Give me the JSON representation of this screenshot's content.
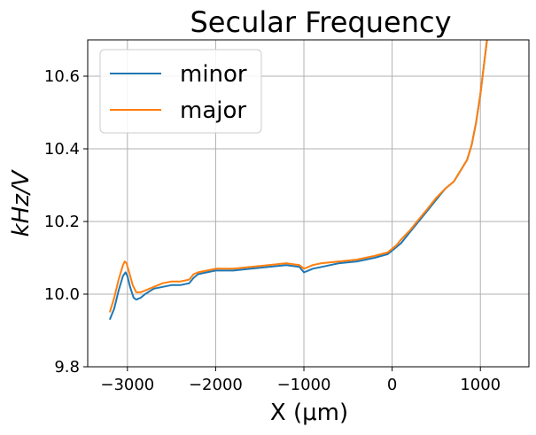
{
  "chart_data": {
    "type": "line",
    "title": "Secular Frequency",
    "xlabel": "X (μm)",
    "ylabel": "kHz/V",
    "xlim": [
      -3450,
      1550
    ],
    "ylim": [
      9.8,
      10.7
    ],
    "xticks": [
      -3000,
      -2000,
      -1000,
      0,
      1000
    ],
    "xtick_labels": [
      "−3000",
      "−2000",
      "−1000",
      "0",
      "1000"
    ],
    "yticks": [
      9.8,
      10.0,
      10.2,
      10.4,
      10.6
    ],
    "ytick_labels": [
      "9.8",
      "10.0",
      "10.2",
      "10.4",
      "10.6"
    ],
    "grid": true,
    "legend": "upper left",
    "series": [
      {
        "name": "minor",
        "color": "#1f77b4",
        "x": [
          -3200,
          -3150,
          -3100,
          -3050,
          -3020,
          -3000,
          -2970,
          -2930,
          -2900,
          -2850,
          -2800,
          -2700,
          -2600,
          -2500,
          -2400,
          -2300,
          -2250,
          -2200,
          -2100,
          -2000,
          -1800,
          -1600,
          -1400,
          -1200,
          -1050,
          -1000,
          -950,
          -900,
          -800,
          -600,
          -400,
          -200,
          -50,
          0,
          50,
          100,
          200,
          300,
          400,
          500,
          600,
          700,
          750,
          800,
          850,
          900,
          950,
          1000,
          1050,
          1080
        ],
        "y": [
          9.93,
          9.96,
          10.01,
          10.05,
          10.06,
          10.05,
          10.02,
          9.99,
          9.985,
          9.99,
          10.0,
          10.015,
          10.02,
          10.025,
          10.025,
          10.03,
          10.045,
          10.055,
          10.06,
          10.065,
          10.065,
          10.07,
          10.075,
          10.08,
          10.075,
          10.06,
          10.065,
          10.07,
          10.075,
          10.085,
          10.09,
          10.1,
          10.11,
          10.12,
          10.13,
          10.14,
          10.17,
          10.2,
          10.23,
          10.26,
          10.29,
          10.31,
          10.33,
          10.35,
          10.37,
          10.41,
          10.47,
          10.55,
          10.65,
          10.71
        ]
      },
      {
        "name": "major",
        "color": "#ff7f0e",
        "x": [
          -3200,
          -3150,
          -3100,
          -3050,
          -3030,
          -3010,
          -2980,
          -2940,
          -2900,
          -2850,
          -2800,
          -2700,
          -2600,
          -2500,
          -2400,
          -2300,
          -2250,
          -2200,
          -2100,
          -2000,
          -1800,
          -1600,
          -1400,
          -1200,
          -1050,
          -1000,
          -950,
          -900,
          -800,
          -600,
          -400,
          -200,
          -50,
          0,
          50,
          100,
          200,
          300,
          400,
          500,
          600,
          700,
          750,
          800,
          850,
          900,
          950,
          1000,
          1050,
          1080
        ],
        "y": [
          9.95,
          9.99,
          10.04,
          10.08,
          10.09,
          10.085,
          10.06,
          10.025,
          10.005,
          10.005,
          10.01,
          10.02,
          10.03,
          10.035,
          10.035,
          10.04,
          10.055,
          10.06,
          10.065,
          10.07,
          10.07,
          10.075,
          10.08,
          10.085,
          10.08,
          10.07,
          10.075,
          10.08,
          10.085,
          10.09,
          10.095,
          10.105,
          10.115,
          10.125,
          10.135,
          10.15,
          10.175,
          10.205,
          10.235,
          10.265,
          10.29,
          10.31,
          10.33,
          10.35,
          10.37,
          10.41,
          10.47,
          10.55,
          10.65,
          10.71
        ]
      }
    ]
  }
}
